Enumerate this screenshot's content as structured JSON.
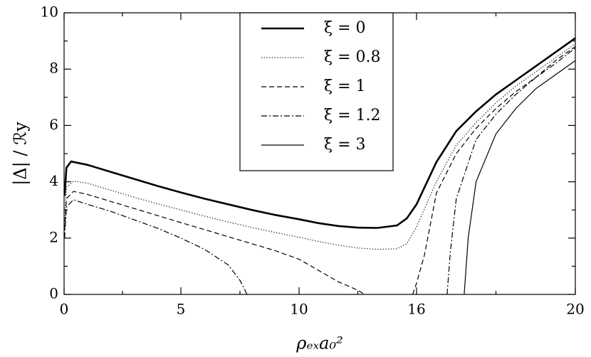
{
  "chart_data": {
    "type": "line",
    "xlabel": "ρₑₓa₀²",
    "ylabel": "|Δ| / ℛy",
    "xticks": [
      0,
      5,
      10,
      16,
      20
    ],
    "xlim": [
      0,
      20
    ],
    "ylim": [
      0,
      10
    ],
    "yticks": [
      0,
      2,
      4,
      6,
      8,
      10
    ],
    "legend": "top-center",
    "series": [
      {
        "name": "ξ = 0",
        "color": "#000",
        "style": "solid-thick",
        "x": [
          0.02,
          0.1,
          0.3,
          1,
          2,
          3,
          4,
          5,
          6,
          7,
          8,
          9,
          10,
          11,
          12,
          13,
          14,
          15,
          15.5,
          16,
          16.5,
          17,
          17.5,
          18,
          18.5,
          19,
          19.5,
          20
        ],
        "values": [
          3.5,
          4.5,
          4.72,
          4.6,
          4.35,
          4.1,
          3.85,
          3.62,
          3.4,
          3.2,
          3.0,
          2.82,
          2.67,
          2.53,
          2.43,
          2.37,
          2.36,
          2.45,
          2.7,
          3.2,
          4.7,
          5.8,
          6.5,
          7.1,
          7.6,
          8.1,
          8.6,
          9.1
        ]
      },
      {
        "name": "ξ = 0.8",
        "color": "#000",
        "style": "dotted",
        "x": [
          0.02,
          0.1,
          0.4,
          1,
          2,
          3,
          4,
          5,
          6,
          7,
          8,
          9,
          10,
          11,
          12,
          13,
          14,
          15,
          15.5,
          16,
          16.5,
          17,
          17.5,
          18,
          18.5,
          19,
          19.5,
          20
        ],
        "values": [
          2.5,
          3.8,
          4.02,
          3.95,
          3.7,
          3.45,
          3.22,
          3.0,
          2.78,
          2.57,
          2.38,
          2.2,
          2.03,
          1.88,
          1.75,
          1.65,
          1.6,
          1.62,
          1.8,
          2.4,
          4.0,
          5.3,
          6.1,
          6.8,
          7.4,
          7.9,
          8.4,
          8.9
        ]
      },
      {
        "name": "ξ = 1",
        "color": "#000",
        "style": "dashed",
        "x": [
          0.02,
          0.1,
          0.4,
          1,
          2,
          3,
          4,
          5,
          6,
          7,
          8,
          9,
          10,
          11,
          12,
          12.5,
          13,
          13.35,
          null,
          15.8,
          16,
          16.2,
          16.5,
          17,
          17.5,
          18,
          18.5,
          19,
          19.5,
          20
        ],
        "values": [
          2.3,
          3.4,
          3.66,
          3.55,
          3.3,
          3.05,
          2.8,
          2.55,
          2.3,
          2.05,
          1.8,
          1.55,
          1.25,
          0.85,
          0.45,
          0.3,
          0.15,
          0,
          null,
          0,
          0.4,
          1.4,
          3.6,
          5.0,
          5.9,
          6.6,
          7.2,
          7.7,
          8.3,
          8.8
        ]
      },
      {
        "name": "ξ = 1.2",
        "color": "#000",
        "style": "dashdot",
        "x": [
          0.02,
          0.1,
          0.4,
          1,
          2,
          3,
          4,
          5,
          6,
          7,
          7.5,
          7.8,
          null,
          16.77,
          16.85,
          17,
          17.5,
          18,
          18.5,
          19,
          19.5,
          20
        ],
        "values": [
          2.0,
          3.1,
          3.36,
          3.2,
          2.95,
          2.65,
          2.35,
          2.0,
          1.6,
          1.05,
          0.5,
          0,
          null,
          0,
          1.5,
          3.4,
          5.5,
          6.4,
          7.1,
          7.7,
          8.2,
          8.75
        ]
      },
      {
        "name": "ξ = 3",
        "color": "#000",
        "style": "solid",
        "x": [
          17.2,
          17.3,
          17.5,
          18,
          18.5,
          19,
          19.5,
          20
        ],
        "values": [
          0,
          2.0,
          4.0,
          5.7,
          6.6,
          7.3,
          7.8,
          8.3
        ]
      }
    ]
  }
}
